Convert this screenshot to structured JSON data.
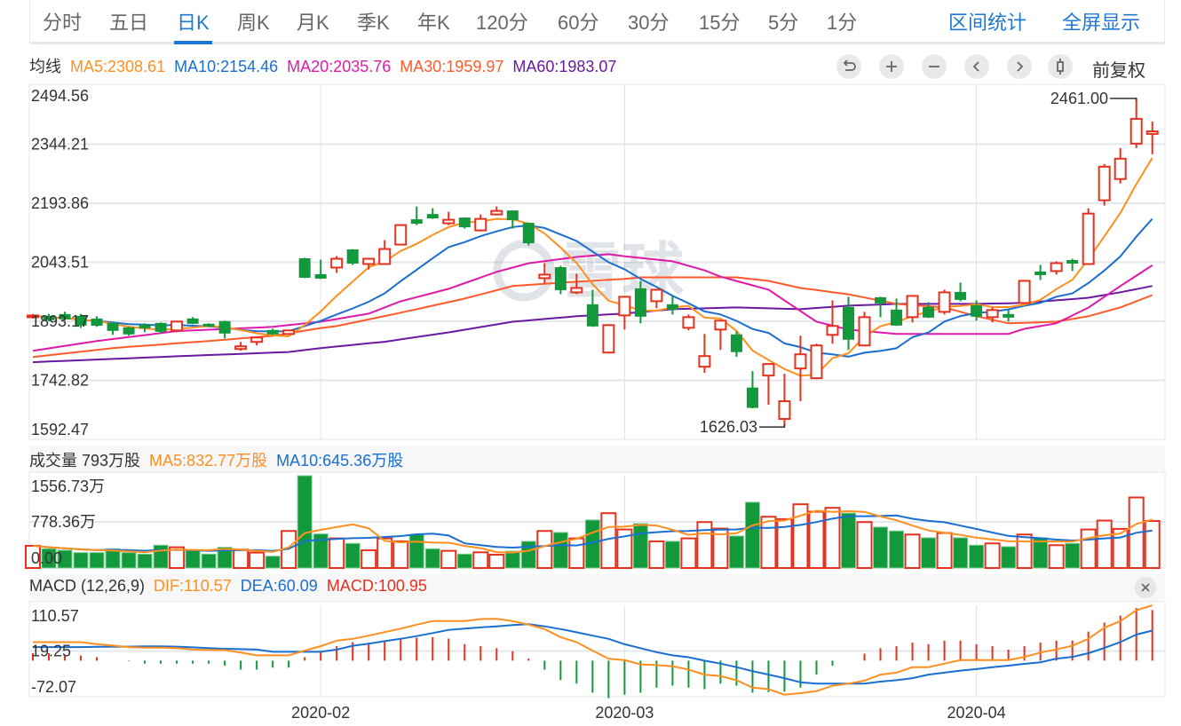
{
  "tabs": [
    "分时",
    "五日",
    "日K",
    "周K",
    "月K",
    "季K",
    "年K",
    "120分",
    "60分",
    "30分",
    "15分",
    "5分",
    "1分"
  ],
  "active_tab": "日K",
  "right_links": {
    "range_stats": "区间统计",
    "fullscreen": "全屏显示"
  },
  "ma_legend": {
    "title": "均线",
    "ma5": "MA5:2308.61",
    "ma10": "MA10:2154.46",
    "ma20": "MA20:2035.76",
    "ma30": "MA30:1959.97",
    "ma60": "MA60:1983.07"
  },
  "controls": {
    "icons": [
      "undo-icon",
      "zoom-in-icon",
      "zoom-out-icon",
      "chevron-left-icon",
      "chevron-right-icon",
      "candlestick-icon"
    ],
    "adjust": "前复权"
  },
  "volume_legend": {
    "title": "成交量 793万股",
    "ma5": "MA5:832.77万股",
    "ma10": "MA10:645.36万股"
  },
  "macd_legend": {
    "title": "MACD (12,26,9)",
    "dif": "DIF:110.57",
    "dea": "DEA:60.09",
    "macd": "MACD:100.95"
  },
  "watermark": "雪球",
  "colors": {
    "up": "#e5311e",
    "down": "#11993b",
    "ma5": "#ff8f1f",
    "ma10": "#1a6fd0",
    "ma20": "#df1aa8",
    "ma30": "#ff5a2a",
    "ma60": "#6a1aa0",
    "accent": "#1e78d2"
  },
  "chart_data": {
    "type": "candlestick",
    "x_labels": [
      {
        "index": 18,
        "label": "2020-02"
      },
      {
        "index": 37,
        "label": "2020-03"
      },
      {
        "index": 59,
        "label": "2020-04"
      }
    ],
    "price_panel": {
      "ylim": [
        1592.47,
        2494.56
      ],
      "y_ticks": [
        "2494.56",
        "2344.21",
        "2193.86",
        "2043.51",
        "1893.17",
        "1742.82",
        "1592.47"
      ],
      "max_label": "2461.00",
      "min_label": "1626.03",
      "candles_ohlc": [
        [
          1905,
          1908,
          1912,
          1900
        ],
        [
          1906,
          1897,
          1912,
          1893
        ],
        [
          1910.5,
          1899.2,
          1917.2,
          1894.7
        ],
        [
          1906,
          1883.4,
          1912,
          1876.6
        ],
        [
          1899,
          1883,
          1906,
          1879
        ],
        [
          1887.9,
          1869.9,
          1892.4,
          1858.6
        ],
        [
          1876.6,
          1860.9,
          1879,
          1856.4
        ],
        [
          1883.4,
          1876.6,
          1887.9,
          1865.4
        ],
        [
          1887.9,
          1867.6,
          1890,
          1863
        ],
        [
          1869.9,
          1892.4,
          1894.7,
          1865.4
        ],
        [
          1899.2,
          1887.9,
          1903.7,
          1885.7
        ],
        [
          1885.7,
          1881.2,
          1888,
          1878.9
        ],
        [
          1892.4,
          1863.1,
          1894.7,
          1849.6
        ],
        [
          1822.6,
          1829.4,
          1840.6,
          1818.1
        ],
        [
          1840.6,
          1851.9,
          1854,
          1831.6
        ],
        [
          1869.9,
          1860.9,
          1874.4,
          1858.6
        ],
        [
          1860.9,
          1869.9,
          1872.1,
          1858.6
        ],
        [
          2052.5,
          2005.2,
          2055,
          2003
        ],
        [
          2012,
          2003,
          2050.3,
          2001
        ],
        [
          2030,
          2052.5,
          2059.3,
          2016.5
        ],
        [
          2075.1,
          2041.3,
          2077,
          2036.8
        ],
        [
          2039,
          2052.5,
          2055,
          2025
        ],
        [
          2039,
          2077.3,
          2099.9,
          2036.8
        ],
        [
          2088.6,
          2138.2,
          2140,
          2086.4
        ],
        [
          2151.8,
          2142.8,
          2185.6,
          2138.2
        ],
        [
          2165.3,
          2156.3,
          2181,
          2154
        ],
        [
          2142.8,
          2151.8,
          2172,
          2138.2
        ],
        [
          2156.3,
          2133.7,
          2158,
          2129.2
        ],
        [
          2124.7,
          2154,
          2165.3,
          2122
        ],
        [
          2165.3,
          2174.3,
          2185.6,
          2163
        ],
        [
          2174.3,
          2151.8,
          2176,
          2129.2
        ],
        [
          2142.8,
          2093.1,
          2145,
          2086.4
        ],
        [
          2003,
          2012,
          2041.3,
          1989.4
        ],
        [
          2030,
          1973.6,
          2034.5,
          1962.3
        ],
        [
          1966.8,
          1978.1,
          2014.2,
          1962.3
        ],
        [
          1935.3,
          1881.2,
          1973.6,
          1879
        ],
        [
          1813.6,
          1883.4,
          1885.7,
          1811.3
        ],
        [
          1908.2,
          1955.6,
          1957.8,
          1872.1
        ],
        [
          1976,
          1906,
          1996.2,
          1887.9
        ],
        [
          1944.3,
          1973.6,
          1976,
          1926.3
        ],
        [
          1935.3,
          1924,
          1957.8,
          1910.5
        ],
        [
          1876.6,
          1903.7,
          1910.5,
          1869.9
        ],
        [
          1777.5,
          1804.5,
          1861,
          1761.6
        ],
        [
          1872.1,
          1894.7,
          1897,
          1820.3
        ],
        [
          1858.6,
          1815.8,
          1867.6,
          1802.3
        ],
        [
          1723.3,
          1673.7,
          1766.2,
          1671.5
        ],
        [
          1754.9,
          1784.3,
          1786.5,
          1680.5
        ],
        [
          1644.4,
          1689.5,
          1759.4,
          1626.03
        ],
        [
          1773,
          1809,
          1856.4,
          1689.5
        ],
        [
          1748.1,
          1831.6,
          1836,
          1746
        ],
        [
          1858.6,
          1881.2,
          1946.5,
          1836.1
        ],
        [
          1928.5,
          1847.4,
          1955.6,
          1820.3
        ],
        [
          1831.6,
          1903.7,
          1917.2,
          1829.4
        ],
        [
          1953.3,
          1939.8,
          1955.6,
          1903.7
        ],
        [
          1921.8,
          1883.4,
          1951,
          1881.2
        ],
        [
          1903.7,
          1957.8,
          1960,
          1890.2
        ],
        [
          1928.5,
          1903.7,
          1942,
          1901.5
        ],
        [
          1917.2,
          1966.8,
          1973.6,
          1910.5
        ],
        [
          1966.8,
          1948.8,
          1991.7,
          1944.3
        ],
        [
          1933,
          1906,
          1946.5,
          1894.7
        ],
        [
          1903.7,
          1921.8,
          1928.5,
          1890.2
        ],
        [
          1910.5,
          1903.7,
          1921.8,
          1892.4
        ],
        [
          1939.8,
          1996.2,
          1998.4,
          1937.5
        ],
        [
          2018.7,
          2012,
          2036.8,
          1998.4
        ],
        [
          2021,
          2041.3,
          2046,
          2012
        ],
        [
          2048,
          2041.3,
          2052.5,
          2021
        ],
        [
          2039,
          2167.5,
          2181,
          2036.8
        ],
        [
          2201.4,
          2287,
          2293.8,
          2187.8
        ],
        [
          2255.5,
          2307.4,
          2334.4,
          2244.2
        ],
        [
          2345.7,
          2408.8,
          2461.0,
          2334.4
        ],
        [
          2370.5,
          2377,
          2402,
          2318.6
        ]
      ],
      "ma20_points": [
        [
          0,
          1818
        ],
        [
          4,
          1843
        ],
        [
          9,
          1868
        ],
        [
          15,
          1879
        ],
        [
          18,
          1892
        ],
        [
          21,
          1912.7
        ],
        [
          23,
          1944
        ],
        [
          26,
          1976
        ],
        [
          29,
          2019
        ],
        [
          31,
          2041
        ],
        [
          34,
          2057
        ],
        [
          36,
          2064
        ],
        [
          37,
          2059
        ],
        [
          40,
          2046
        ],
        [
          42,
          2023
        ],
        [
          43,
          2007
        ],
        [
          46,
          1973.6
        ],
        [
          49,
          1892
        ],
        [
          51,
          1872
        ],
        [
          54,
          1861
        ],
        [
          61,
          1861
        ],
        [
          62,
          1874
        ],
        [
          64,
          1888
        ],
        [
          66,
          1928
        ],
        [
          68,
          1983
        ],
        [
          70,
          2035.76
        ]
      ],
      "ma30_points": [
        [
          0,
          1802
        ],
        [
          5,
          1825
        ],
        [
          11,
          1843
        ],
        [
          15,
          1856
        ],
        [
          18,
          1876
        ],
        [
          19,
          1881
        ],
        [
          23,
          1915
        ],
        [
          27,
          1951
        ],
        [
          30,
          1983
        ],
        [
          34,
          1994
        ],
        [
          37,
          2001
        ],
        [
          38,
          2005
        ],
        [
          44,
          2005
        ],
        [
          46,
          1996
        ],
        [
          48,
          1978
        ],
        [
          51,
          1962
        ],
        [
          54,
          1937.5
        ],
        [
          57,
          1928.5
        ],
        [
          59,
          1906
        ],
        [
          61,
          1888
        ],
        [
          64,
          1892
        ],
        [
          66,
          1906
        ],
        [
          68,
          1928.5
        ],
        [
          70,
          1959.97
        ]
      ],
      "ma60_points": [
        [
          0,
          1789
        ],
        [
          9,
          1804
        ],
        [
          16,
          1815
        ],
        [
          18,
          1825
        ],
        [
          22,
          1841
        ],
        [
          26,
          1865
        ],
        [
          30,
          1892
        ],
        [
          34,
          1906
        ],
        [
          37,
          1913
        ],
        [
          40,
          1924
        ],
        [
          44,
          1928.5
        ],
        [
          48,
          1924
        ],
        [
          51,
          1933
        ],
        [
          54,
          1937.5
        ],
        [
          59,
          1937.5
        ],
        [
          62,
          1940
        ],
        [
          66,
          1953
        ],
        [
          68,
          1967
        ],
        [
          70,
          1983.07
        ]
      ]
    },
    "volume_panel": {
      "unit": "万股",
      "ylim": [
        0,
        1556.73
      ],
      "y_ticks": [
        "1556.73万",
        "778.36万",
        "0.00"
      ],
      "values": [
        375,
        325,
        300,
        260,
        260,
        325,
        260,
        235,
        385,
        350,
        300,
        235,
        350,
        310,
        260,
        200,
        625,
        1556.73,
        575,
        500,
        415,
        300,
        500,
        450,
        565,
        325,
        290,
        235,
        265,
        225,
        285,
        450,
        625,
        600,
        500,
        810,
        925,
        650,
        750,
        450,
        450,
        500,
        775,
        665,
        540,
        1110,
        865,
        825,
        1075,
        950,
        1015,
        925,
        775,
        690,
        625,
        565,
        510,
        590,
        510,
        385,
        415,
        360,
        565,
        510,
        385,
        415,
        650,
        800,
        660,
        1190,
        793
      ]
    },
    "macd_panel": {
      "ylim": [
        -72.07,
        110.57
      ],
      "y_ticks": [
        "110.57",
        "19.25",
        "-72.07"
      ],
      "dif": [
        37,
        37,
        37,
        37,
        33,
        30,
        27,
        26,
        26,
        25,
        22,
        21.5,
        21,
        16,
        10.5,
        10.5,
        10.5,
        20,
        29,
        40,
        43.5,
        50,
        57,
        64,
        72,
        79,
        79,
        79,
        83,
        83.5,
        79,
        72,
        63,
        47,
        37,
        20,
        4,
        1,
        -7.5,
        -9,
        -11,
        -18,
        -28,
        -31,
        -39,
        -54,
        -57,
        -68,
        -65,
        -61,
        -50,
        -46,
        -40,
        -28,
        -24,
        -13,
        -13,
        -6,
        1,
        1,
        1,
        1,
        7.6,
        16,
        22.5,
        29.7,
        43.5,
        65.7,
        79,
        100.4,
        110.57
      ],
      "dea": [
        27,
        27,
        27,
        27,
        27.5,
        28,
        28,
        28.5,
        28.5,
        28,
        26.5,
        25,
        23.7,
        23,
        22,
        17.7,
        17.7,
        17.7,
        17.7,
        22,
        29.7,
        34,
        39,
        43.5,
        49,
        55,
        61.5,
        64,
        66.5,
        68.6,
        71,
        72.8,
        68.6,
        63,
        56.7,
        50,
        43.5,
        32.7,
        25,
        17,
        10.5,
        6.9,
        0,
        -6,
        -13,
        -21,
        -28,
        -35,
        -43.4,
        -46,
        -46,
        -46,
        -46,
        -42,
        -39,
        -35,
        -28,
        -24,
        -20,
        -17,
        -13,
        -10,
        -6.5,
        -3.2,
        4,
        7.6,
        14.8,
        25.5,
        37,
        52,
        60.09
      ],
      "macd": [
        15,
        15,
        12,
        10,
        7,
        0,
        -1,
        -6,
        -6,
        -6,
        -6,
        -6,
        -10,
        -18,
        -18,
        -14,
        -14,
        7,
        18,
        29,
        37,
        36,
        40,
        43,
        46,
        47,
        44,
        33,
        29,
        25,
        19,
        4,
        -18,
        -39,
        -46,
        -64,
        -75,
        -68,
        -64,
        -54,
        -50,
        -54,
        -57,
        -46,
        -50,
        -64,
        -63,
        -62,
        -54,
        -28,
        -10,
        0,
        14,
        25,
        29,
        36,
        33,
        40,
        40,
        33,
        29,
        22,
        29,
        36,
        40,
        40,
        58,
        76,
        90,
        105,
        100.95
      ]
    }
  }
}
